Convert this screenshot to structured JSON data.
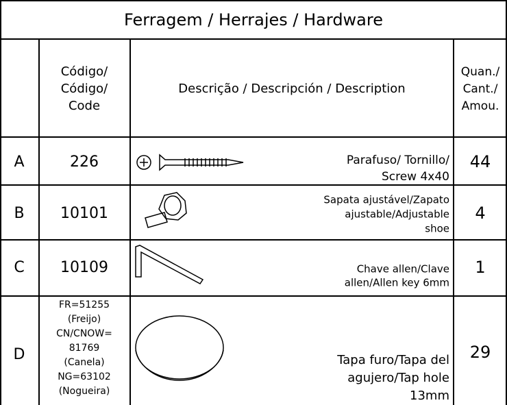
{
  "title": "Ferragem / Herrajes / Hardware",
  "table": {
    "header": {
      "code": [
        "Código/",
        "Código/",
        "Code"
      ],
      "description": [
        "Descrição / Descripción / Description"
      ],
      "quantity": [
        "Quan./",
        "Cant./",
        "Amou."
      ]
    },
    "rows": [
      {
        "letter": "A",
        "code": [
          "226"
        ],
        "description": [
          "Parafuso/ Tornillo/",
          "Screw 4x40"
        ],
        "quantity": 44
      },
      {
        "letter": "B",
        "code": [
          "10101"
        ],
        "description": [
          "Sapata ajustável/Zapato",
          "ajustable/Adjustable",
          "shoe"
        ],
        "quantity": 4
      },
      {
        "letter": "C",
        "code": [
          "10109"
        ],
        "description": [
          "Chave allen/Clave",
          "allen/Allen key 6mm"
        ],
        "quantity": 1
      },
      {
        "letter": "D",
        "code": [
          "FR=51255",
          "(Freijo)",
          "CN/CNOW=",
          "81769",
          "(Canela)",
          "NG=63102",
          "(Nogueira)"
        ],
        "description": [
          "Tapa furo/Tapa del",
          "agujero/Tap hole",
          "13mm"
        ],
        "quantity": 29
      }
    ]
  }
}
